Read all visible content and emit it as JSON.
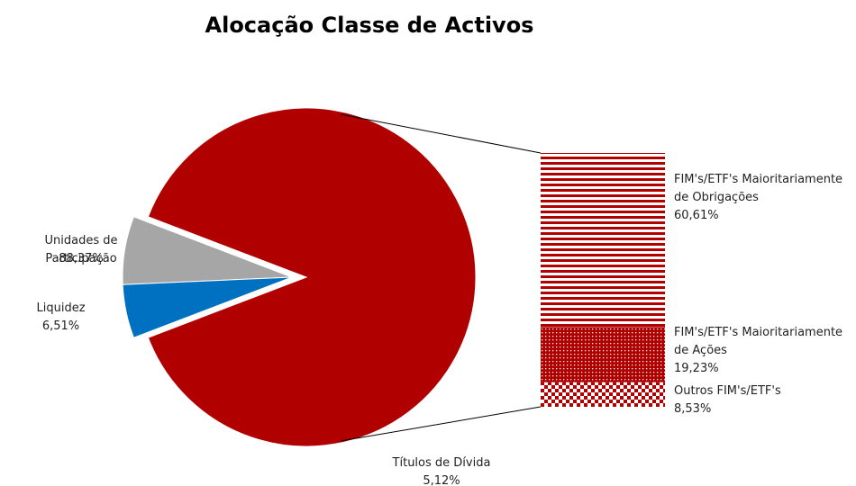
{
  "chart_data": {
    "type": "pie",
    "title": "Alocação Classe de Activos",
    "categories": [
      "Unidades de Participação",
      "Liquidez",
      "Títulos de Dívida"
    ],
    "values": [
      88.37,
      6.51,
      5.12
    ],
    "value_labels": [
      "88,37%",
      "6,51%",
      "5,12%"
    ],
    "colors": [
      "#b00000",
      "#a6a6a6",
      "#0070c0"
    ],
    "breakdown": {
      "categories": [
        "FIM's/ETF's Maioritariamente de Obrigações",
        "FIM's/ETF's Maioritariamente de Ações",
        "Outros FIM's/ETF's"
      ],
      "values": [
        60.61,
        19.23,
        8.53
      ],
      "value_labels": [
        "60,61%",
        "19,23%",
        "8,53%"
      ],
      "color": "#b00000",
      "patterns": [
        "horizontal-lines",
        "dots",
        "checker"
      ]
    }
  }
}
